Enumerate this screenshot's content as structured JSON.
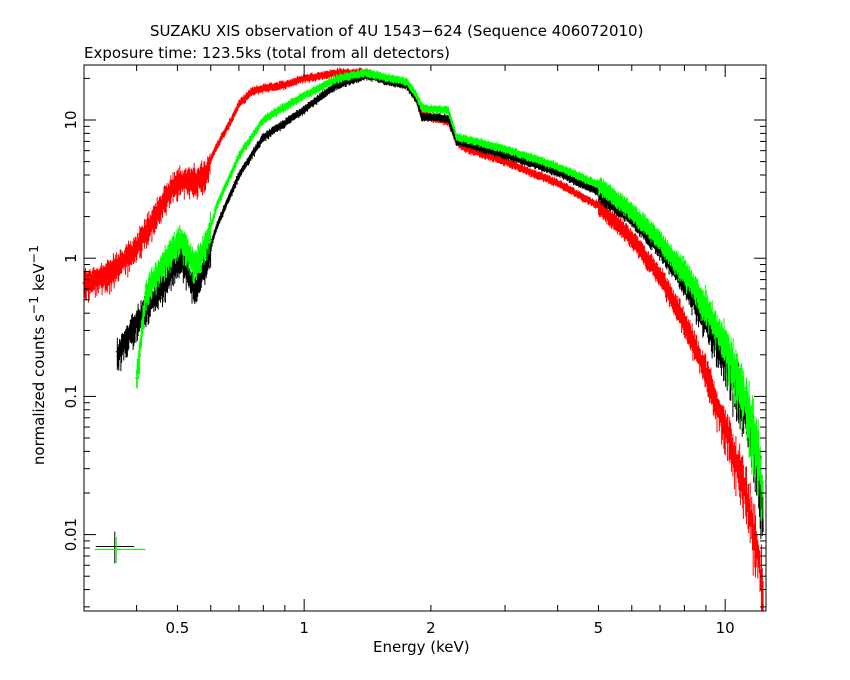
{
  "chart_data": {
    "type": "scatter",
    "title": "SUZAKU XIS observation of 4U 1543−624 (Sequence 406072010)",
    "subtitle": "Exposure time: 123.5ks (total from all detectors)",
    "xlabel": "Energy (keV)",
    "ylabel_parts": {
      "pre": "normalized counts s",
      "sup1": "−1",
      "mid": " keV",
      "sup2": "−1"
    },
    "xscale": "log",
    "yscale": "log",
    "xlim": [
      0.3,
      12.5
    ],
    "ylim": [
      0.0028,
      25
    ],
    "xticks": [
      {
        "value": 0.5,
        "label": "0.5"
      },
      {
        "value": 1,
        "label": "1"
      },
      {
        "value": 2,
        "label": "2"
      },
      {
        "value": 5,
        "label": "5"
      },
      {
        "value": 10,
        "label": "10"
      }
    ],
    "yticks": [
      {
        "value": 0.01,
        "label": "0.01"
      },
      {
        "value": 0.1,
        "label": "0.1"
      },
      {
        "value": 1,
        "label": "1"
      },
      {
        "value": 10,
        "label": "10"
      }
    ],
    "series": [
      {
        "color": "#ff0000",
        "x": [
          0.3,
          0.35,
          0.4,
          0.45,
          0.5,
          0.55,
          0.58,
          0.62,
          0.66,
          0.7,
          0.75,
          0.8,
          0.9,
          1.0,
          1.2,
          1.4,
          1.6,
          1.75,
          1.85,
          1.9,
          2.0,
          2.2,
          2.3,
          2.4,
          3.0,
          4.0,
          5.0,
          6.0,
          7.0,
          8.0,
          9.0,
          10.0,
          11.0,
          11.5,
          12.0,
          12.3
        ],
        "y": [
          0.65,
          0.8,
          1.2,
          2.2,
          3.7,
          3.6,
          4.0,
          6.5,
          9.0,
          13.0,
          16.0,
          17.0,
          18.0,
          20.0,
          22.0,
          22.0,
          19.0,
          18.0,
          14.0,
          11.0,
          10.5,
          9.8,
          7.0,
          6.3,
          5.0,
          3.5,
          2.4,
          1.4,
          0.75,
          0.35,
          0.15,
          0.06,
          0.025,
          0.014,
          0.007,
          0.0035
        ]
      },
      {
        "color": "#000000",
        "x": [
          0.36,
          0.4,
          0.45,
          0.48,
          0.51,
          0.55,
          0.58,
          0.62,
          0.7,
          0.8,
          0.9,
          1.0,
          1.2,
          1.4,
          1.6,
          1.75,
          1.85,
          1.9,
          2.0,
          2.2,
          2.3,
          2.4,
          3.0,
          4.0,
          5.0,
          6.0,
          7.0,
          8.0,
          9.0,
          10.0,
          11.0,
          11.5,
          12.0,
          12.3
        ],
        "y": [
          0.2,
          0.35,
          0.55,
          0.8,
          1.0,
          0.6,
          0.85,
          1.7,
          4.0,
          7.5,
          9.5,
          12.0,
          18.0,
          21.0,
          19.0,
          18.0,
          14.0,
          10.5,
          10.5,
          10.2,
          7.0,
          6.8,
          5.6,
          4.2,
          3.0,
          2.0,
          1.2,
          0.68,
          0.36,
          0.18,
          0.09,
          0.055,
          0.03,
          0.015
        ]
      },
      {
        "color": "#00ff00",
        "x": [
          0.4,
          0.42,
          0.45,
          0.48,
          0.51,
          0.55,
          0.58,
          0.62,
          0.7,
          0.8,
          0.9,
          1.0,
          1.2,
          1.4,
          1.6,
          1.75,
          1.85,
          1.9,
          2.0,
          2.2,
          2.3,
          2.4,
          3.0,
          4.0,
          5.0,
          6.0,
          7.0,
          8.0,
          9.0,
          10.0,
          11.0,
          11.5,
          12.0,
          12.3
        ],
        "y": [
          0.13,
          0.55,
          0.8,
          1.1,
          1.4,
          0.9,
          1.2,
          2.4,
          5.5,
          10.0,
          12.5,
          15.0,
          20.0,
          22.0,
          20.0,
          19.0,
          15.0,
          12.5,
          12.0,
          11.8,
          7.5,
          7.3,
          6.2,
          4.6,
          3.4,
          2.2,
          1.35,
          0.8,
          0.45,
          0.24,
          0.11,
          0.07,
          0.04,
          0.02
        ]
      }
    ],
    "error_bar_key": [
      {
        "color": "#000000",
        "x": 0.355,
        "y": 0.0082,
        "xerr": [
          0.32,
          0.395
        ],
        "yerr": [
          0.0062,
          0.0105
        ]
      },
      {
        "color": "#00ff00",
        "x": 0.358,
        "y": 0.0078,
        "xerr": [
          0.318,
          0.42
        ],
        "yerr": [
          0.0062,
          0.0096
        ]
      }
    ]
  }
}
